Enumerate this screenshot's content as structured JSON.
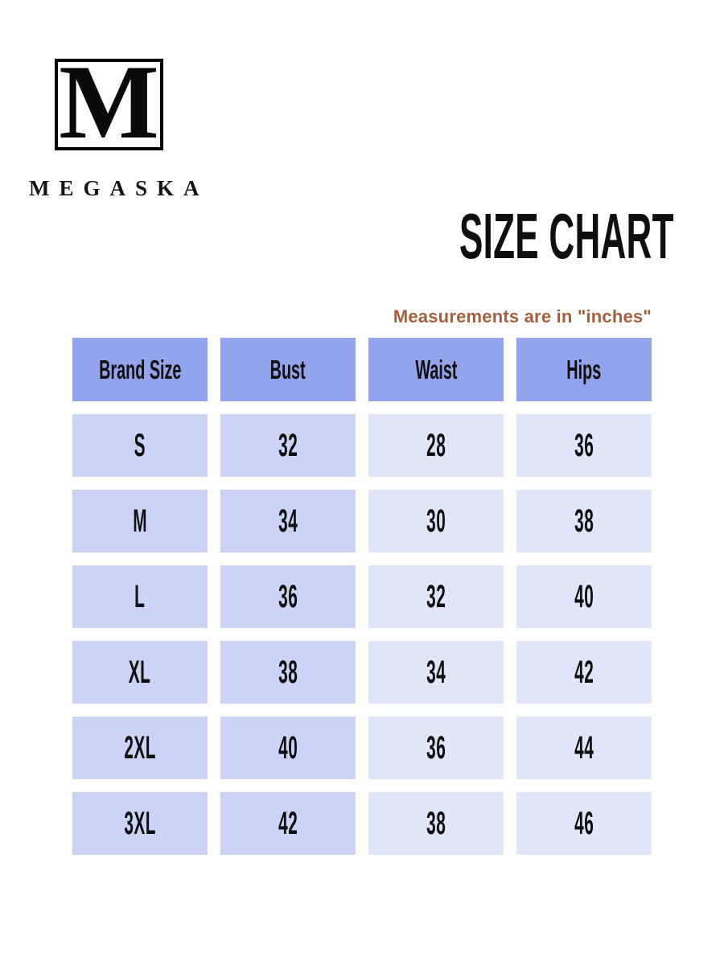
{
  "brand": {
    "monogram": "M",
    "name": "MEGASKA"
  },
  "header": {
    "title": "SIZE CHART",
    "note": "Measurements are in \"inches\""
  },
  "colors": {
    "header_cell_bg": "#93a3ec",
    "cell_dark_bg": "#ccd4f6",
    "cell_light_bg": "#e1e5f9",
    "note_text": "#a45e3c",
    "body_text": "#0f0f0f"
  },
  "chart_data": {
    "type": "table",
    "title": "SIZE CHART",
    "note": "Measurements are in \"inches\"",
    "unit": "inches",
    "columns": [
      "Brand Size",
      "Bust",
      "Waist",
      "Hips"
    ],
    "rows": [
      [
        "S",
        "32",
        "28",
        "36"
      ],
      [
        "M",
        "34",
        "30",
        "38"
      ],
      [
        "L",
        "36",
        "32",
        "40"
      ],
      [
        "XL",
        "38",
        "34",
        "42"
      ],
      [
        "2XL",
        "40",
        "36",
        "44"
      ],
      [
        "3XL",
        "42",
        "38",
        "46"
      ]
    ]
  }
}
